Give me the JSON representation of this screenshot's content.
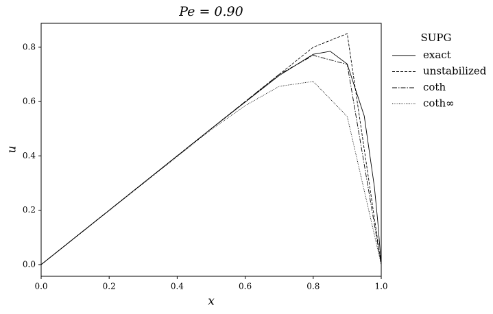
{
  "chart_data": {
    "type": "line",
    "title": "Pe = 0.90",
    "xlabel": "x",
    "ylabel": "u",
    "legend_title": "SUPG",
    "legend": "outside right",
    "xlim": [
      0,
      1
    ],
    "ylim": [
      -0.043,
      0.888
    ],
    "xticks": [
      {
        "value": 0,
        "label": "0.0"
      },
      0.2,
      0.4,
      0.6,
      0.8,
      {
        "value": 1,
        "label": "1.0"
      }
    ],
    "yticks": [
      {
        "value": 0,
        "label": "0.0"
      },
      0.2,
      0.4,
      0.6,
      0.8
    ],
    "series": [
      {
        "name": "exact",
        "color": "#000000",
        "linestyle": "solid",
        "x": [
          0,
          0.5,
          0.7,
          0.8,
          0.85,
          0.9,
          0.95,
          0.98,
          0.99,
          1
        ],
        "values": [
          0,
          0.5,
          0.696,
          0.774,
          0.785,
          0.738,
          0.547,
          0.285,
          0.156,
          0
        ]
      },
      {
        "name": "unstabilized",
        "color": "#000000",
        "linestyle": "dashed",
        "x": [
          0,
          0.7,
          0.8,
          0.9,
          1
        ],
        "values": [
          0,
          0.7,
          0.8,
          0.85,
          0
        ]
      },
      {
        "name": "coth",
        "color": "#000000",
        "linestyle": "dashdot",
        "x": [
          0,
          0.7,
          0.8,
          0.9,
          1
        ],
        "values": [
          0,
          0.7,
          0.77,
          0.737,
          0
        ]
      },
      {
        "name": "coth∞",
        "color": "#000000",
        "linestyle": "dotted",
        "x": [
          0,
          0.5,
          0.6,
          0.7,
          0.8,
          0.9,
          1
        ],
        "values": [
          0,
          0.497,
          0.585,
          0.656,
          0.674,
          0.545,
          0
        ]
      }
    ]
  }
}
